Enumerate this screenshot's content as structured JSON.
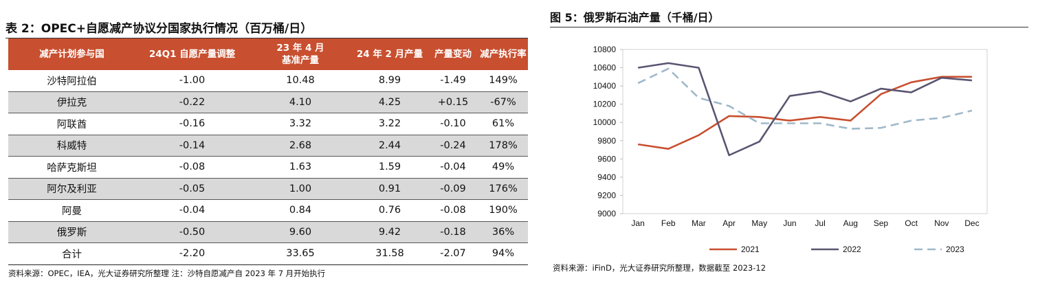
{
  "table": {
    "title": "表 2：OPEC+自愿减产协议分国家执行情况（百万桶/日）",
    "headers": [
      [
        "减产计划参与国"
      ],
      [
        "24Q1 自愿产量调整"
      ],
      [
        "23 年 4 月",
        "基准产量"
      ],
      [
        "24 年 2 月产量"
      ],
      [
        "产量变动"
      ],
      [
        "减产执行率"
      ]
    ],
    "rows": [
      [
        "沙特阿拉伯",
        "-1.00",
        "10.48",
        "8.99",
        "-1.49",
        "149%"
      ],
      [
        "伊拉克",
        "-0.22",
        "4.10",
        "4.25",
        "+0.15",
        "-67%"
      ],
      [
        "阿联酋",
        "-0.16",
        "3.32",
        "3.22",
        "-0.10",
        "61%"
      ],
      [
        "科威特",
        "-0.14",
        "2.68",
        "2.44",
        "-0.24",
        "178%"
      ],
      [
        "哈萨克斯坦",
        "-0.08",
        "1.63",
        "1.59",
        "-0.04",
        "49%"
      ],
      [
        "阿尔及利亚",
        "-0.05",
        "1.00",
        "0.91",
        "-0.09",
        "176%"
      ],
      [
        "阿曼",
        "-0.04",
        "0.84",
        "0.76",
        "-0.08",
        "190%"
      ],
      [
        "俄罗斯",
        "-0.50",
        "9.60",
        "9.42",
        "-0.18",
        "36%"
      ],
      [
        "合计",
        "-2.20",
        "33.65",
        "31.58",
        "-2.07",
        "94%"
      ]
    ],
    "source": "资料来源：OPEC，IEA，光大证券研究所整理  注：沙特自愿减产自 2023 年 7 月开始执行",
    "header_color": "#c84f2f",
    "alt_row_color": "#d9d9d9"
  },
  "chart_data": {
    "type": "line",
    "title": "图 5：俄罗斯石油产量（千桶/日）",
    "xlabel": "",
    "ylabel": "",
    "categories": [
      "Jan",
      "Feb",
      "Mar",
      "Apr",
      "May",
      "Jun",
      "Jul",
      "Aug",
      "Sep",
      "Oct",
      "Nov",
      "Dec"
    ],
    "ylim": [
      9000,
      10800
    ],
    "yticks": [
      9000,
      9200,
      9400,
      9600,
      9800,
      10000,
      10200,
      10400,
      10600,
      10800
    ],
    "grid": false,
    "legend_position": "bottom",
    "series": [
      {
        "name": "2021",
        "color": "#c84f2f",
        "dash": "solid",
        "values": [
          9760,
          9710,
          9860,
          10070,
          10060,
          10020,
          10060,
          10020,
          10310,
          10440,
          10500,
          10500
        ]
      },
      {
        "name": "2022",
        "color": "#5a5470",
        "dash": "solid",
        "values": [
          10600,
          10650,
          10600,
          9640,
          9790,
          10290,
          10340,
          10230,
          10370,
          10330,
          10490,
          10460
        ]
      },
      {
        "name": "2023",
        "color": "#9fb8c9",
        "dash": "dashed",
        "values": [
          10430,
          10590,
          10270,
          10180,
          9990,
          9990,
          9990,
          9930,
          9940,
          10020,
          10050,
          10130
        ]
      }
    ],
    "source": "资料来源：iFinD，光大证券研究所整理，数据截至 2023-12"
  }
}
